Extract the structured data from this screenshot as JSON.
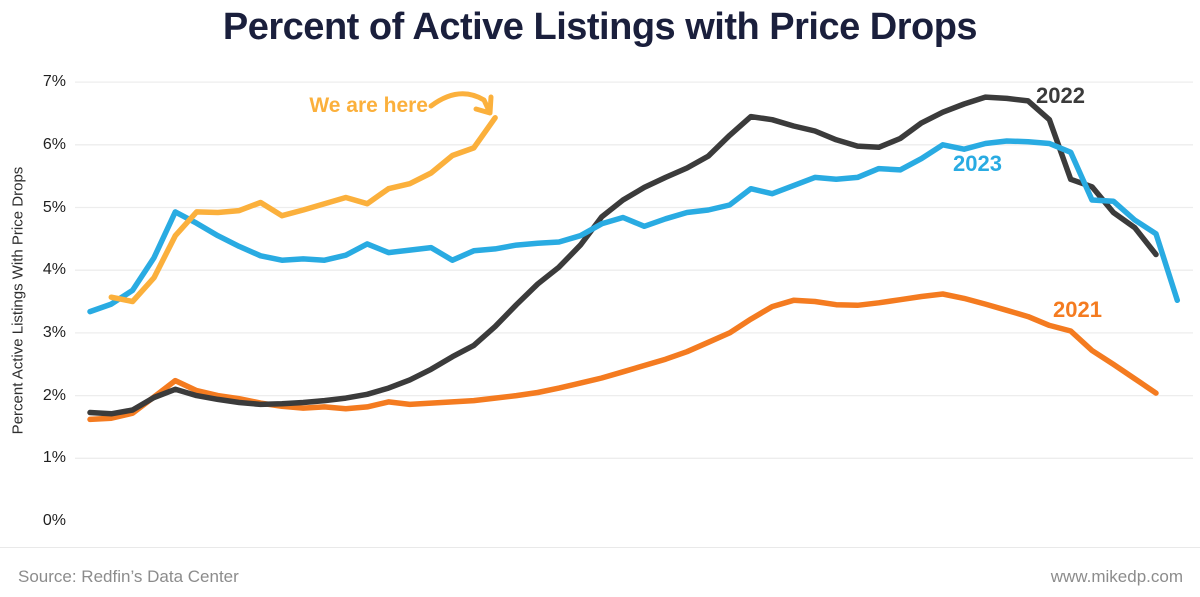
{
  "title": "Percent of Active Listings with Price Drops",
  "y_axis": {
    "title": "Percent Active Listings With Price Drops",
    "tick_labels": [
      "0%",
      "1%",
      "2%",
      "3%",
      "4%",
      "5%",
      "6%",
      "7%"
    ]
  },
  "annotation": {
    "text": "We are here"
  },
  "inline_labels": {
    "s2021": "2021",
    "s2022": "2022",
    "s2023": "2023"
  },
  "footer": {
    "source": "Source: Redfin’s Data Center",
    "website": "www.mikedp.com"
  },
  "colors": {
    "title": "#1a1f3c",
    "series_2021": "#f47b20",
    "series_2022": "#3b3b3b",
    "series_2023": "#29abe2",
    "series_current": "#fbb03c",
    "grid": "#ededed",
    "tick_text": "#1f1f1f",
    "footer_text": "#8c8c8c"
  },
  "chart_data": {
    "type": "line",
    "title": "Percent of Active Listings with Price Drops",
    "xlabel": "",
    "ylabel": "Percent Active Listings With Price Drops",
    "ylim": [
      0,
      7
    ],
    "y_unit": "%",
    "x_unit": "week of year (no x tick labels shown in chart)",
    "grid": "horizontal light-gray lines at each 1% from 1% to 7%",
    "legend_position": "inline labels at right ends of lines; current-year line annotated with arrow",
    "series": [
      {
        "name": "2021",
        "color": "#f47b20",
        "start_week": 1,
        "values": [
          1.62,
          1.64,
          1.72,
          1.98,
          2.24,
          2.08,
          2.0,
          1.95,
          1.88,
          1.83,
          1.8,
          1.82,
          1.79,
          1.82,
          1.9,
          1.86,
          1.88,
          1.9,
          1.92,
          1.96,
          2.0,
          2.05,
          2.12,
          2.2,
          2.28,
          2.38,
          2.48,
          2.58,
          2.7,
          2.85,
          3.0,
          3.22,
          3.42,
          3.52,
          3.5,
          3.45,
          3.44,
          3.48,
          3.53,
          3.58,
          3.62,
          3.55,
          3.46,
          3.36,
          3.26,
          3.12,
          3.03,
          2.72,
          2.5,
          2.27,
          2.04
        ]
      },
      {
        "name": "2022",
        "color": "#3b3b3b",
        "start_week": 1,
        "values": [
          1.73,
          1.71,
          1.77,
          1.97,
          2.1,
          2.0,
          1.94,
          1.89,
          1.86,
          1.87,
          1.89,
          1.92,
          1.96,
          2.02,
          2.12,
          2.25,
          2.42,
          2.62,
          2.8,
          3.1,
          3.45,
          3.78,
          4.05,
          4.4,
          4.85,
          5.12,
          5.32,
          5.48,
          5.63,
          5.82,
          6.15,
          6.45,
          6.4,
          6.3,
          6.22,
          6.08,
          5.98,
          5.96,
          6.1,
          6.35,
          6.52,
          6.65,
          6.76,
          6.74,
          6.7,
          6.4,
          5.45,
          5.33,
          4.92,
          4.68,
          4.25
        ]
      },
      {
        "name": "2023",
        "color": "#29abe2",
        "start_week": 1,
        "values": [
          3.34,
          3.46,
          3.68,
          4.2,
          4.93,
          4.75,
          4.55,
          4.38,
          4.23,
          4.16,
          4.18,
          4.16,
          4.24,
          4.42,
          4.28,
          4.32,
          4.36,
          4.16,
          4.31,
          4.34,
          4.4,
          4.43,
          4.45,
          4.55,
          4.74,
          4.84,
          4.7,
          4.82,
          4.92,
          4.96,
          5.04,
          5.3,
          5.22,
          5.35,
          5.48,
          5.45,
          5.48,
          5.62,
          5.6,
          5.78,
          6.0,
          5.93,
          6.02,
          6.06,
          6.05,
          6.02,
          5.88,
          5.12,
          5.1,
          4.8,
          4.58,
          3.52
        ]
      },
      {
        "name": "current year (We are here)",
        "color": "#fbb03c",
        "start_week": 2,
        "values": [
          3.57,
          3.5,
          3.88,
          4.55,
          4.93,
          4.92,
          4.95,
          5.08,
          4.87,
          4.96,
          5.06,
          5.16,
          5.06,
          5.3,
          5.38,
          5.55,
          5.83,
          5.95,
          6.43
        ]
      }
    ]
  }
}
